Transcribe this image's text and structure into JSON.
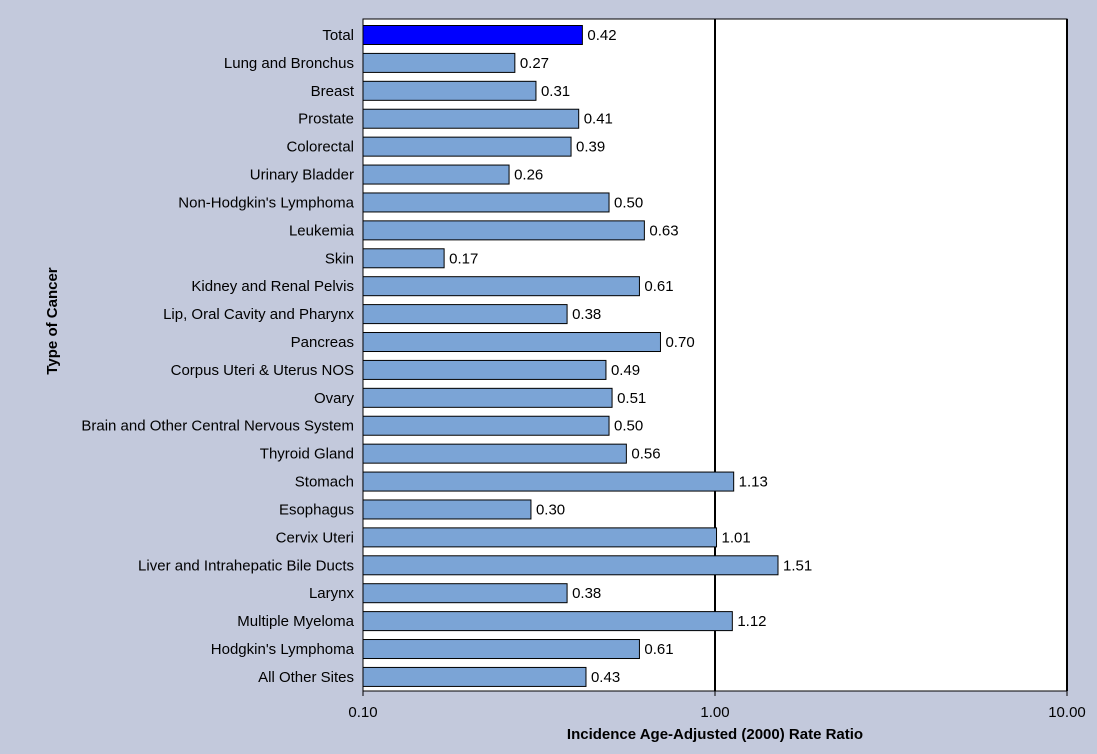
{
  "chart_data": {
    "type": "bar",
    "orientation": "horizontal",
    "xscale": "log",
    "xlim": [
      0.1,
      10
    ],
    "xticks": [
      "0.10",
      "1.00",
      "10.00"
    ],
    "xlabel": "Incidence Age-Adjusted (2000) Rate Ratio",
    "ylabel": "Type of Cancer",
    "grid": "vertical lines at 1.00 and 10.00",
    "legend": "none",
    "colors": {
      "highlight": "#0000ff",
      "bar": "#7ba4d6",
      "plot_bg": "#ffffff",
      "page_bg": "#c3c9dc"
    },
    "categories": [
      "Total",
      "Lung and Bronchus",
      "Breast",
      "Prostate",
      "Colorectal",
      "Urinary Bladder",
      "Non-Hodgkin's Lymphoma",
      "Leukemia",
      "Skin",
      "Kidney and Renal Pelvis",
      "Lip, Oral Cavity and Pharynx",
      "Pancreas",
      "Corpus Uteri & Uterus NOS",
      "Ovary",
      "Brain and Other Central Nervous System",
      "Thyroid Gland",
      "Stomach",
      "Esophagus",
      "Cervix Uteri",
      "Liver and Intrahepatic Bile Ducts",
      "Larynx",
      "Multiple Myeloma",
      "Hodgkin's Lymphoma",
      "All Other Sites"
    ],
    "values": [
      0.42,
      0.27,
      0.31,
      0.41,
      0.39,
      0.26,
      0.5,
      0.63,
      0.17,
      0.61,
      0.38,
      0.7,
      0.49,
      0.51,
      0.5,
      0.56,
      1.13,
      0.3,
      1.01,
      1.51,
      0.38,
      1.12,
      0.61,
      0.43
    ],
    "value_labels": [
      "0.42",
      "0.27",
      "0.31",
      "0.41",
      "0.39",
      "0.26",
      "0.50",
      "0.63",
      "0.17",
      "0.61",
      "0.38",
      "0.70",
      "0.49",
      "0.51",
      "0.50",
      "0.56",
      "1.13",
      "0.30",
      "1.01",
      "1.51",
      "0.38",
      "1.12",
      "0.61",
      "0.43"
    ],
    "highlighted_category": "Total"
  }
}
